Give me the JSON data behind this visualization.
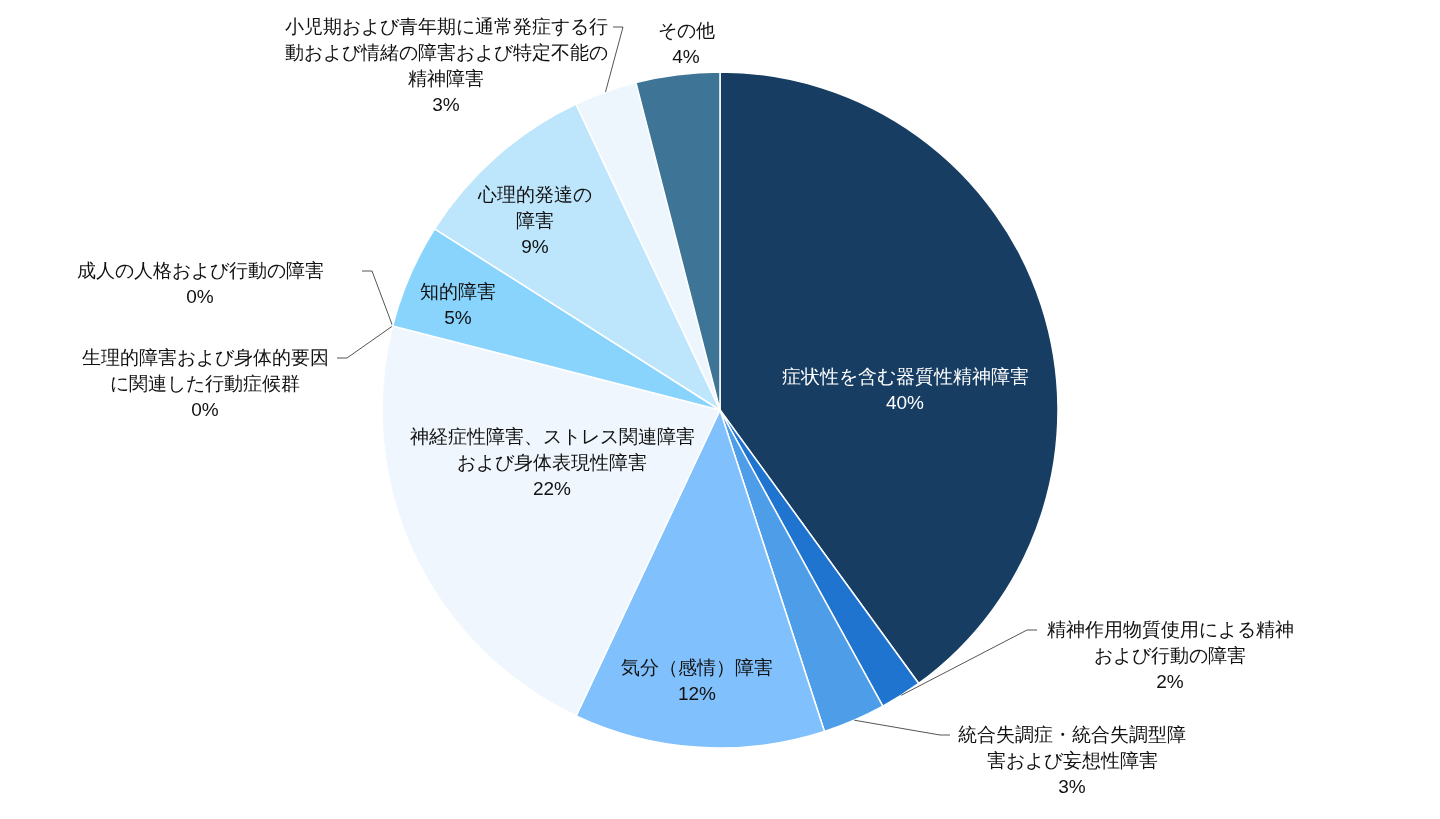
{
  "chart_data": {
    "type": "pie",
    "categories": [
      "症状性を含む器質性精神障害",
      "精神作用物質使用による精神および行動の障害",
      "統合失調症・統合失調型障害および妄想性障害",
      "気分（感情）障害",
      "神経症性障害、ストレス関連障害および身体表現性障害",
      "生理的障害および身体的要因に関連した行動症候群",
      "成人の人格および行動の障害",
      "知的障害",
      "心理的発達の障害",
      "小児期および青年期に通常発症する行動および情緒の障害および特定不能の精神障害",
      "その他"
    ],
    "values": [
      40,
      2,
      3,
      12,
      22,
      0,
      0,
      5,
      9,
      3,
      4
    ],
    "colors": [
      "#173d63",
      "#1f74d0",
      "#4d9de8",
      "#80c0fc",
      "#eff6fd",
      "#1e90e0",
      "#4fb0f0",
      "#88d4fc",
      "#bde6fc",
      "#eef6fd",
      "#3e7495"
    ],
    "value_labels": [
      "40%",
      "2%",
      "3%",
      "12%",
      "22%",
      "0%",
      "0%",
      "5%",
      "9%",
      "3%",
      "4%"
    ]
  }
}
